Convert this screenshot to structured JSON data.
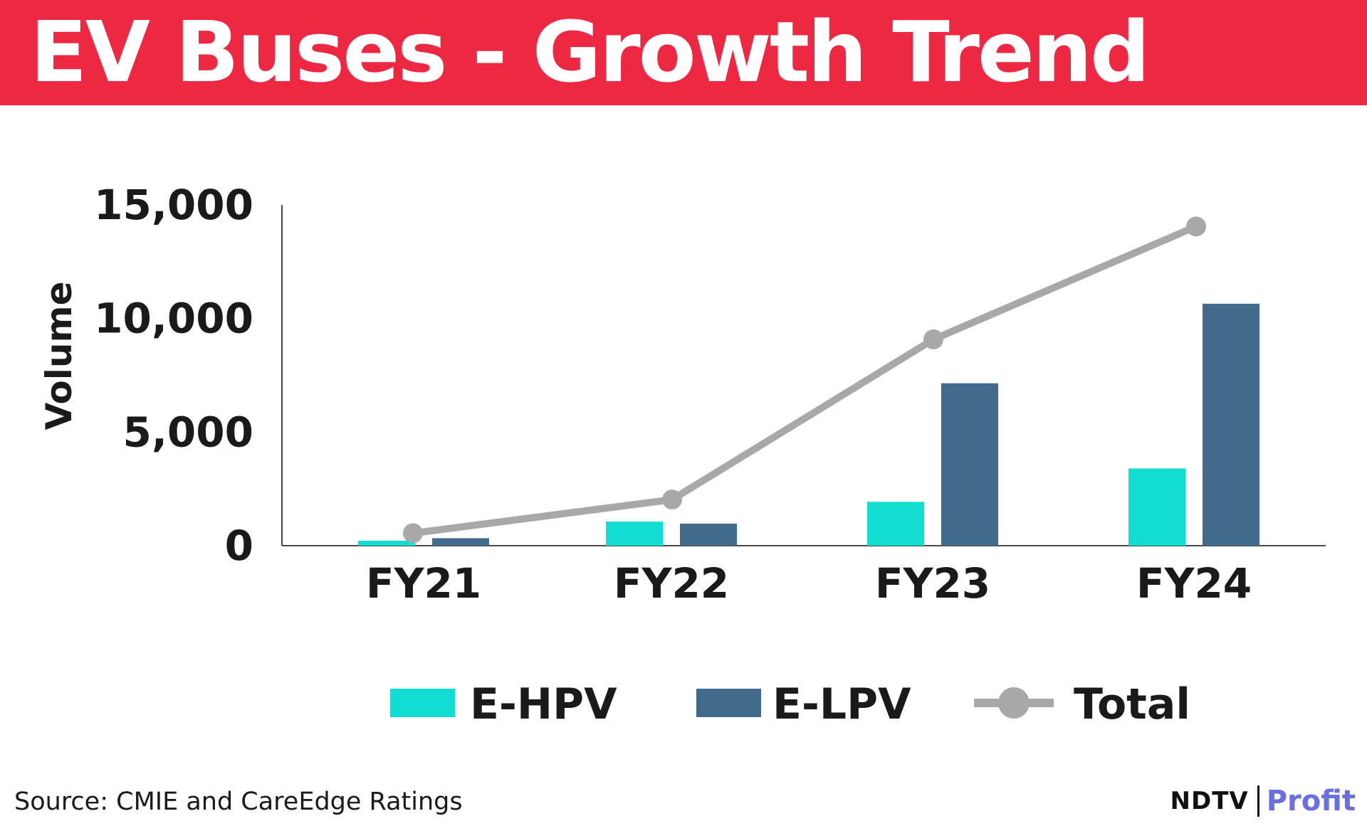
{
  "header": {
    "title": "EV Buses - Growth Trend",
    "background_color": "#ee2743"
  },
  "chart_data": {
    "type": "bar",
    "title": "EV Buses - Growth Trend",
    "xlabel": "",
    "ylabel": "Volume",
    "ylim": [
      0,
      15000
    ],
    "yticks": [
      0,
      5000,
      10000,
      15000
    ],
    "ytick_labels": [
      "0",
      "5,000",
      "10,000",
      "15,000"
    ],
    "categories": [
      "FY21",
      "FY22",
      "FY23",
      "FY24"
    ],
    "series": [
      {
        "name": "E-HPV",
        "kind": "bar",
        "color": "#12ddd2",
        "values": [
          220,
          1060,
          1930,
          3400
        ]
      },
      {
        "name": "E-LPV",
        "kind": "bar",
        "color": "#426a8c",
        "values": [
          330,
          970,
          7150,
          10650
        ]
      },
      {
        "name": "Total",
        "kind": "line",
        "color": "#a8a8a8",
        "values": [
          550,
          2030,
          9080,
          14050
        ]
      }
    ],
    "grid": false,
    "legend": "bottom-center"
  },
  "footer": {
    "source": "Source: CMIE and CareEdge Ratings",
    "brand_left": "NDTV",
    "brand_right": "Profit",
    "brand_right_color": "#6a6fe0"
  }
}
